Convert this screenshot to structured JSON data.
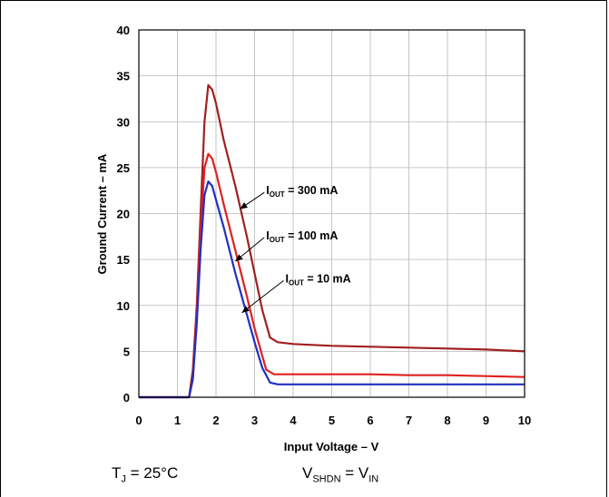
{
  "chart_data": {
    "type": "line",
    "xlabel": "Input Voltage – V",
    "ylabel": "Ground Current – mA",
    "xlim": [
      0,
      10
    ],
    "ylim": [
      0,
      40
    ],
    "x_ticks": [
      "0",
      "1",
      "2",
      "3",
      "4",
      "5",
      "6",
      "7",
      "8",
      "9",
      "10"
    ],
    "y_ticks": [
      "0",
      "5",
      "10",
      "15",
      "20",
      "25",
      "30",
      "35",
      "40"
    ],
    "grid": true,
    "series": [
      {
        "name_main": "I",
        "name_sub": "OUT",
        "name_rest": " = 300 mA",
        "color": "#a02020",
        "x": [
          0,
          1.3,
          1.4,
          1.5,
          1.6,
          1.7,
          1.8,
          1.9,
          2.0,
          2.2,
          2.5,
          2.8,
          3.0,
          3.2,
          3.4,
          3.6,
          4.0,
          5.0,
          6.0,
          7.0,
          8.0,
          9.0,
          10.0
        ],
        "y": [
          0,
          0,
          3,
          10,
          20,
          30,
          34,
          33.5,
          32,
          28,
          23,
          17.5,
          13.5,
          9.5,
          6.5,
          6.0,
          5.8,
          5.6,
          5.5,
          5.4,
          5.3,
          5.2,
          5.0
        ]
      },
      {
        "name_main": "I",
        "name_sub": "OUT",
        "name_rest": " = 100 mA",
        "color": "#e02020",
        "x": [
          0,
          1.3,
          1.4,
          1.5,
          1.6,
          1.7,
          1.8,
          1.9,
          2.0,
          2.2,
          2.5,
          2.8,
          3.0,
          3.2,
          3.3,
          3.5,
          4.0,
          5.0,
          6.0,
          7.0,
          8.0,
          9.0,
          10.0
        ],
        "y": [
          0,
          0,
          2,
          9,
          18,
          25,
          26.5,
          26,
          24.5,
          21,
          16,
          11,
          7.5,
          4.5,
          3.0,
          2.5,
          2.5,
          2.5,
          2.5,
          2.4,
          2.4,
          2.3,
          2.2
        ]
      },
      {
        "name_main": "I",
        "name_sub": "OUT",
        "name_rest": " = 10 mA",
        "color": "#2030c0",
        "x": [
          0,
          1.3,
          1.4,
          1.5,
          1.6,
          1.7,
          1.8,
          1.9,
          2.0,
          2.2,
          2.5,
          2.8,
          3.0,
          3.2,
          3.4,
          3.6,
          4.0,
          5.0,
          6.0,
          7.0,
          8.0,
          9.0,
          10.0
        ],
        "y": [
          0,
          0,
          2,
          8,
          16,
          22,
          23.5,
          23,
          21.5,
          18.5,
          13.5,
          9,
          6,
          3.2,
          1.6,
          1.4,
          1.4,
          1.4,
          1.4,
          1.4,
          1.4,
          1.4,
          1.4
        ]
      }
    ],
    "annotations": [
      {
        "target_series": 0,
        "arrow_to": [
          2.62,
          20.5
        ],
        "label_at": [
          3.3,
          22.5
        ]
      },
      {
        "target_series": 1,
        "arrow_to": [
          2.5,
          14.8
        ],
        "label_at": [
          3.3,
          17.6
        ]
      },
      {
        "target_series": 2,
        "arrow_to": [
          2.67,
          9.2
        ],
        "label_at": [
          3.8,
          12.9
        ]
      }
    ]
  },
  "conditions": {
    "tj_main": "T",
    "tj_sub": "J",
    "tj_rest": " = 25°C",
    "vs_main": "V",
    "vs_sub": "SHDN",
    "vs_eq": " = V",
    "vs_sub2": "IN"
  }
}
